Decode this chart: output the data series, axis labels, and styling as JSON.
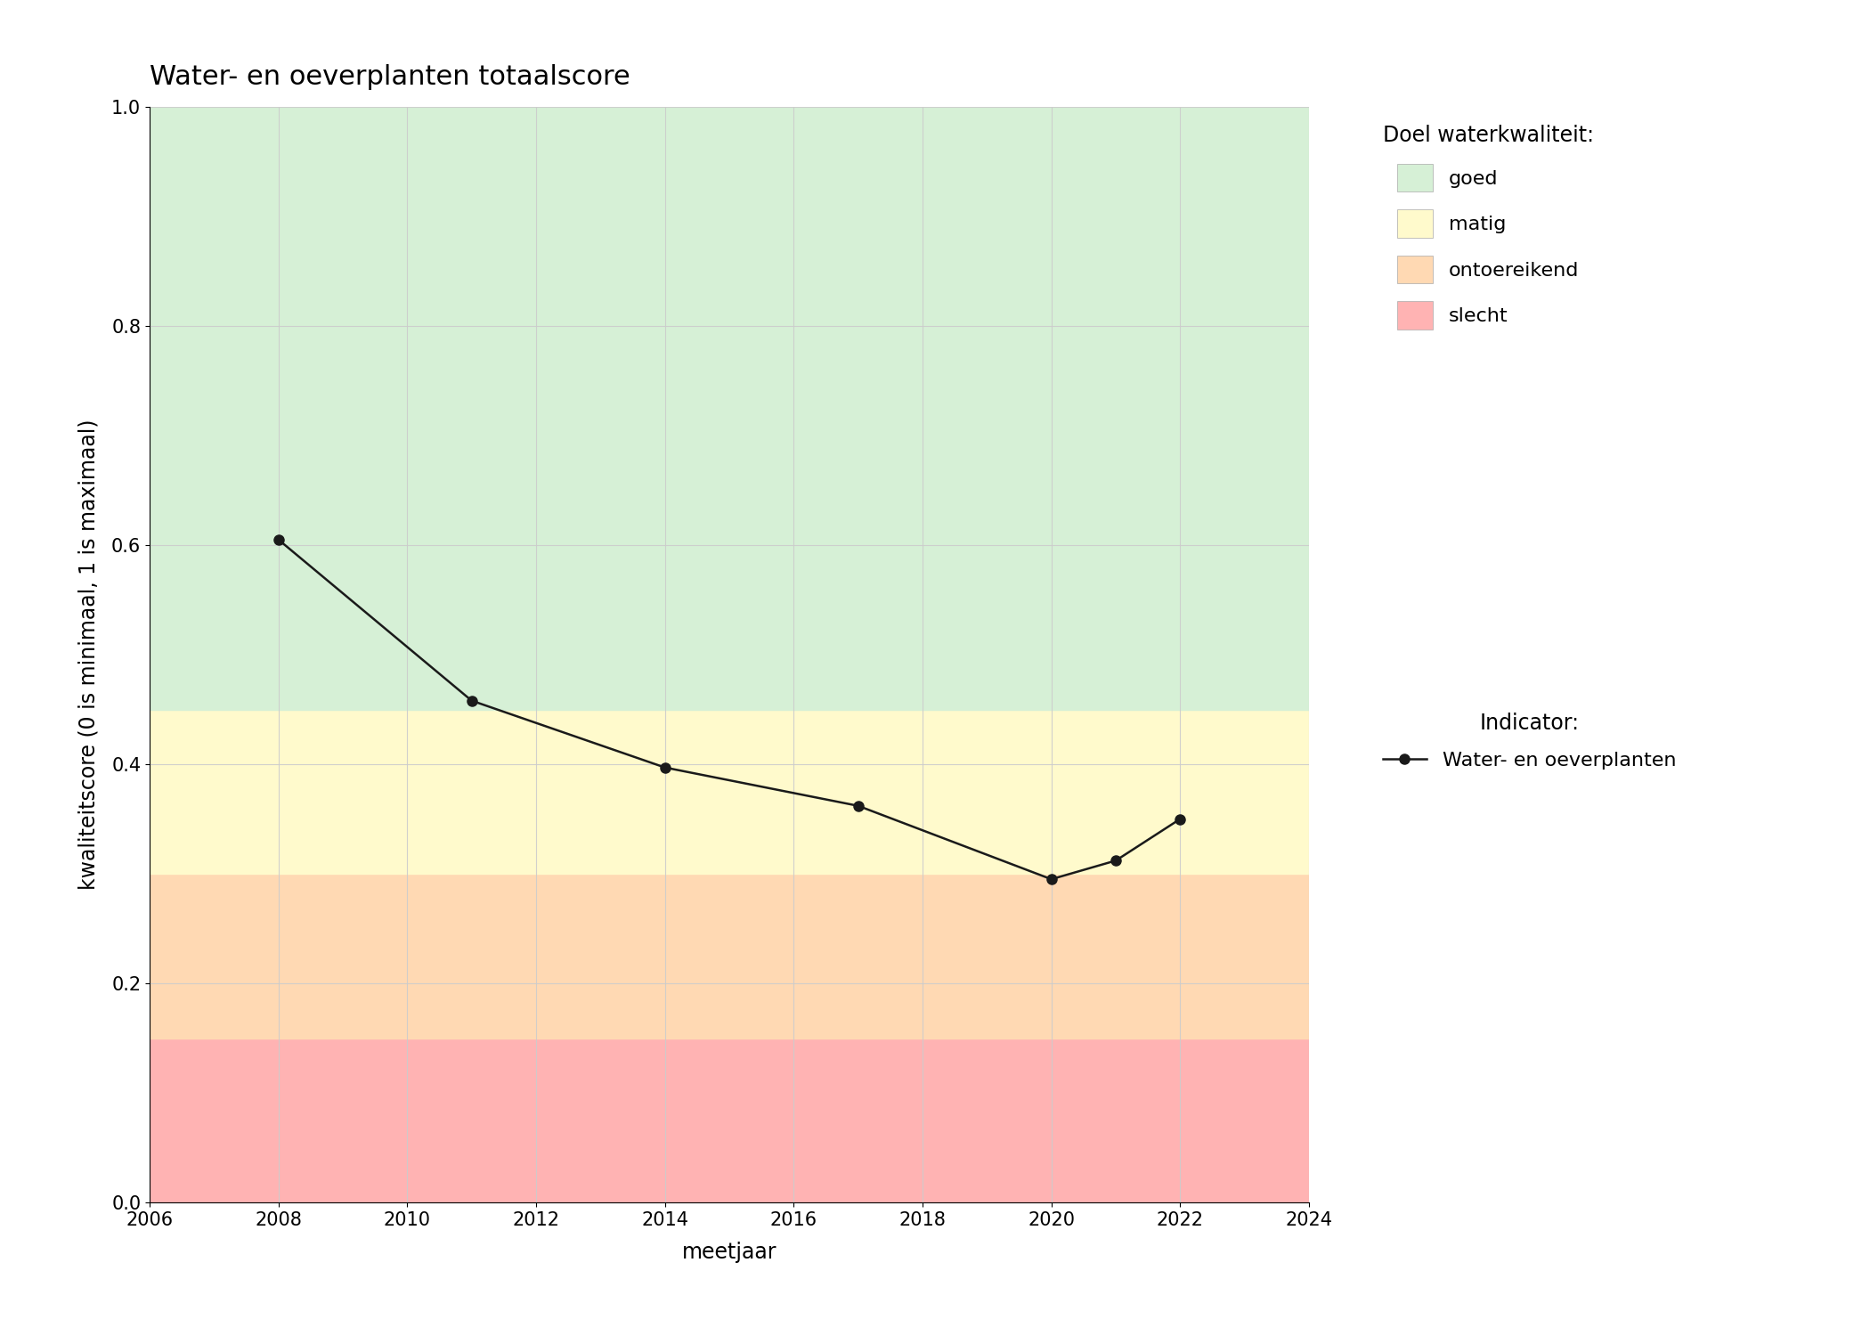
{
  "title": "Water- en oeverplanten totaalscore",
  "xlabel": "meetjaar",
  "ylabel": "kwaliteitscore (0 is minimaal, 1 is maximaal)",
  "xlim": [
    2006,
    2024
  ],
  "ylim": [
    0.0,
    1.0
  ],
  "xticks": [
    2006,
    2008,
    2010,
    2012,
    2014,
    2016,
    2018,
    2020,
    2022,
    2024
  ],
  "yticks": [
    0.0,
    0.2,
    0.4,
    0.6,
    0.8,
    1.0
  ],
  "x_data": [
    2008,
    2011,
    2014,
    2017,
    2020,
    2021,
    2022
  ],
  "y_data": [
    0.605,
    0.458,
    0.397,
    0.362,
    0.295,
    0.312,
    0.35
  ],
  "bg_bands": [
    {
      "ymin": 0.0,
      "ymax": 0.15,
      "color": "#ffb3b3",
      "label": "slecht"
    },
    {
      "ymin": 0.15,
      "ymax": 0.3,
      "color": "#ffd9b3",
      "label": "ontoereikend"
    },
    {
      "ymin": 0.3,
      "ymax": 0.45,
      "color": "#fffacc",
      "label": "matig"
    },
    {
      "ymin": 0.45,
      "ymax": 1.0,
      "color": "#d6f0d6",
      "label": "goed"
    }
  ],
  "line_color": "#1a1a1a",
  "marker_color": "#1a1a1a",
  "marker_size": 8,
  "line_width": 1.8,
  "title_fontsize": 22,
  "axis_label_fontsize": 17,
  "tick_fontsize": 15,
  "legend_fontsize": 16,
  "legend_title_fontsize": 17,
  "bg_color": "#ffffff",
  "grid_color": "#cccccc",
  "grid_alpha": 0.9,
  "legend_quality_title": "Doel waterkwaliteit:",
  "legend_indicator_title": "Indicator:",
  "legend_indicator_label": "Water- en oeverplanten"
}
